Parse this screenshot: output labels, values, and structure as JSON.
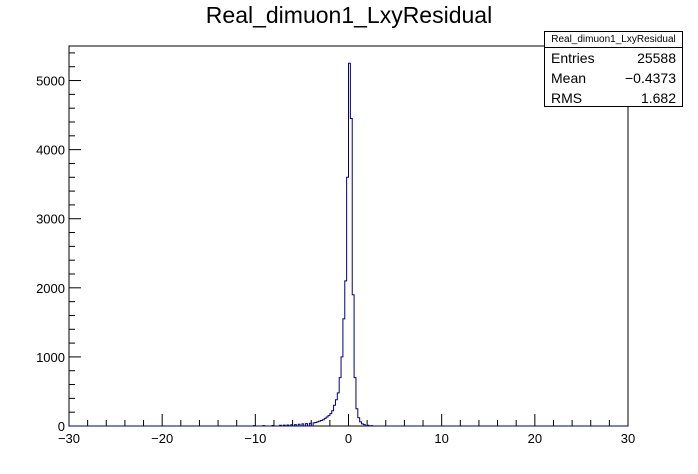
{
  "chart_data": {
    "type": "bar",
    "title": "Real_dimuon1_LxyResidual",
    "xlim": [
      -30,
      30
    ],
    "ylim": [
      0,
      5500
    ],
    "x_major_ticks": [
      -30,
      -20,
      -10,
      0,
      10,
      20,
      30
    ],
    "x_tick_labels": [
      "−30",
      "−20",
      "−10",
      "0",
      "10",
      "20",
      "30"
    ],
    "y_major_ticks": [
      0,
      1000,
      2000,
      3000,
      4000,
      5000
    ],
    "y_tick_labels": [
      "0",
      "1000",
      "2000",
      "3000",
      "4000",
      "5000"
    ],
    "bin_width": 0.2,
    "bin_centers": [
      -10.1,
      -9.1,
      -8.1,
      -7.3,
      -6.9,
      -6.5,
      -6.1,
      -5.7,
      -5.3,
      -4.9,
      -4.5,
      -4.1,
      -3.7,
      -3.5,
      -3.3,
      -3.1,
      -2.9,
      -2.7,
      -2.5,
      -2.3,
      -2.1,
      -1.9,
      -1.7,
      -1.5,
      -1.3,
      -1.1,
      -0.9,
      -0.7,
      -0.5,
      -0.3,
      -0.1,
      0.1,
      0.3,
      0.5,
      0.7,
      0.9,
      1.1,
      1.3,
      1.5,
      1.7,
      2.1,
      2.5
    ],
    "values": [
      5,
      5,
      8,
      10,
      12,
      15,
      18,
      20,
      25,
      30,
      35,
      40,
      45,
      50,
      60,
      70,
      80,
      90,
      110,
      130,
      150,
      180,
      220,
      300,
      380,
      480,
      700,
      1000,
      1550,
      2100,
      3600,
      5250,
      4450,
      1900,
      700,
      250,
      120,
      60,
      30,
      20,
      10,
      5
    ],
    "line_color": "#00007f",
    "stats": {
      "title": "Real_dimuon1_LxyResidual",
      "rows": [
        {
          "label": "Entries",
          "value": "25588"
        },
        {
          "label": "Mean",
          "value": "−0.4373"
        },
        {
          "label": "RMS",
          "value": "1.682"
        }
      ]
    }
  }
}
